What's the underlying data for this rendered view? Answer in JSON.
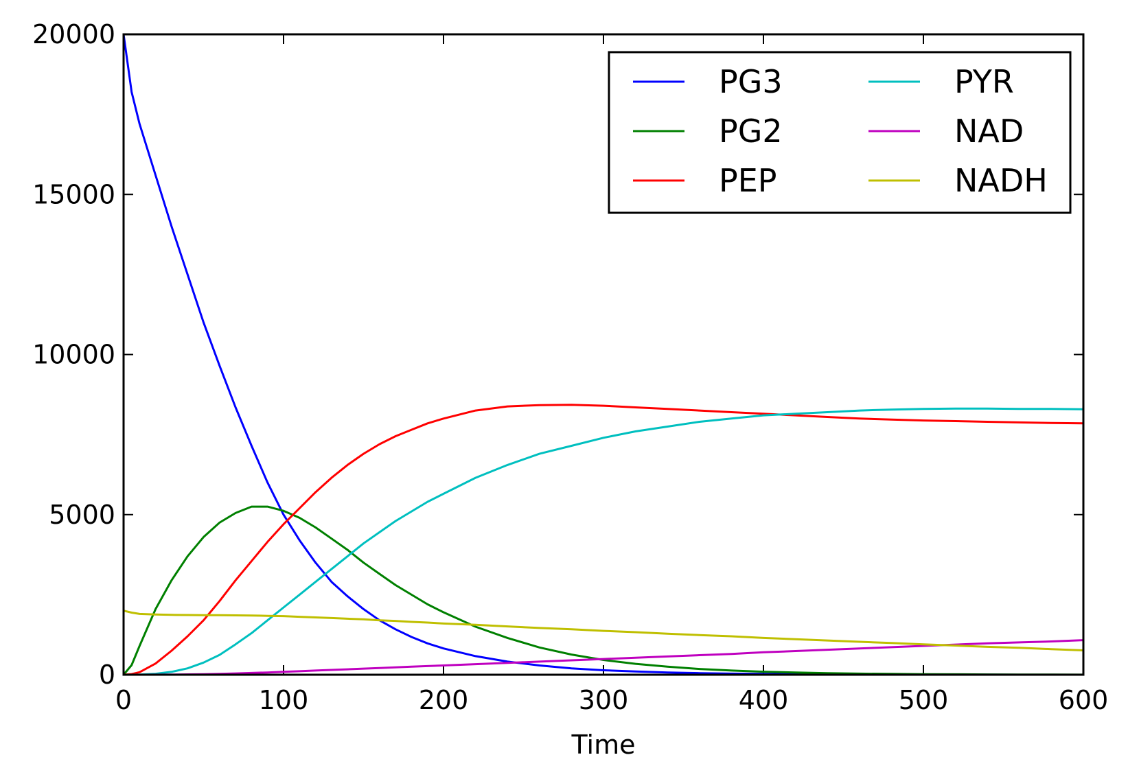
{
  "chart_data": {
    "type": "line",
    "title": "",
    "xlabel": "Time",
    "ylabel": "",
    "xlim": [
      0,
      600
    ],
    "ylim": [
      0,
      20000
    ],
    "xticks": [
      "0",
      "100",
      "200",
      "300",
      "400",
      "500",
      "600"
    ],
    "yticks": [
      "0",
      "5000",
      "10000",
      "15000",
      "20000"
    ],
    "grid": false,
    "legend_position": "top-right",
    "legend_columns": 2,
    "x": [
      0,
      5,
      10,
      20,
      30,
      40,
      50,
      60,
      70,
      80,
      90,
      100,
      110,
      120,
      130,
      140,
      150,
      160,
      170,
      180,
      190,
      200,
      220,
      240,
      260,
      280,
      300,
      320,
      340,
      360,
      380,
      400,
      420,
      440,
      460,
      480,
      500,
      520,
      540,
      560,
      580,
      600
    ],
    "series": [
      {
        "name": "PG3",
        "color": "#0000ff",
        "values": [
          20000,
          18200,
          17200,
          15600,
          14000,
          12500,
          11000,
          9650,
          8350,
          7150,
          6000,
          5000,
          4200,
          3500,
          2900,
          2450,
          2050,
          1700,
          1420,
          1180,
          980,
          820,
          580,
          410,
          290,
          200,
          140,
          100,
          70,
          50,
          35,
          25,
          18,
          12,
          9,
          6,
          4,
          3,
          2,
          1,
          1,
          1
        ]
      },
      {
        "name": "PG2",
        "color": "#008000",
        "values": [
          0,
          300,
          900,
          2050,
          2950,
          3700,
          4300,
          4750,
          5050,
          5250,
          5250,
          5120,
          4900,
          4600,
          4250,
          3900,
          3500,
          3150,
          2800,
          2500,
          2200,
          1950,
          1500,
          1150,
          850,
          630,
          460,
          340,
          250,
          180,
          130,
          95,
          70,
          50,
          35,
          25,
          18,
          12,
          9,
          6,
          4,
          3
        ]
      },
      {
        "name": "PEP",
        "color": "#ff0000",
        "values": [
          0,
          20,
          80,
          350,
          750,
          1200,
          1700,
          2300,
          2950,
          3550,
          4150,
          4700,
          5200,
          5700,
          6150,
          6550,
          6900,
          7200,
          7450,
          7650,
          7850,
          8000,
          8250,
          8380,
          8420,
          8430,
          8400,
          8350,
          8300,
          8250,
          8200,
          8150,
          8100,
          8050,
          8000,
          7970,
          7940,
          7920,
          7900,
          7880,
          7860,
          7850
        ]
      },
      {
        "name": "PYR",
        "color": "#00bfbf",
        "values": [
          0,
          0,
          5,
          30,
          90,
          200,
          380,
          620,
          950,
          1300,
          1700,
          2100,
          2500,
          2900,
          3300,
          3700,
          4100,
          4450,
          4800,
          5100,
          5400,
          5650,
          6150,
          6550,
          6900,
          7150,
          7400,
          7600,
          7750,
          7900,
          8000,
          8100,
          8150,
          8200,
          8250,
          8280,
          8300,
          8310,
          8310,
          8300,
          8300,
          8290
        ]
      },
      {
        "name": "NAD",
        "color": "#bf00bf",
        "values": [
          0,
          0,
          0,
          2,
          5,
          10,
          18,
          28,
          40,
          55,
          70,
          90,
          110,
          130,
          150,
          170,
          190,
          210,
          230,
          250,
          270,
          290,
          330,
          370,
          410,
          450,
          490,
          530,
          570,
          610,
          650,
          700,
          740,
          780,
          820,
          860,
          900,
          940,
          980,
          1010,
          1040,
          1080
        ]
      },
      {
        "name": "NADH",
        "color": "#bfbf00",
        "values": [
          2000,
          1940,
          1900,
          1880,
          1870,
          1865,
          1860,
          1858,
          1855,
          1850,
          1840,
          1830,
          1810,
          1790,
          1770,
          1750,
          1730,
          1700,
          1680,
          1650,
          1630,
          1600,
          1560,
          1510,
          1460,
          1420,
          1370,
          1330,
          1280,
          1240,
          1200,
          1150,
          1110,
          1070,
          1030,
          990,
          950,
          910,
          870,
          840,
          800,
          760
        ]
      }
    ]
  }
}
